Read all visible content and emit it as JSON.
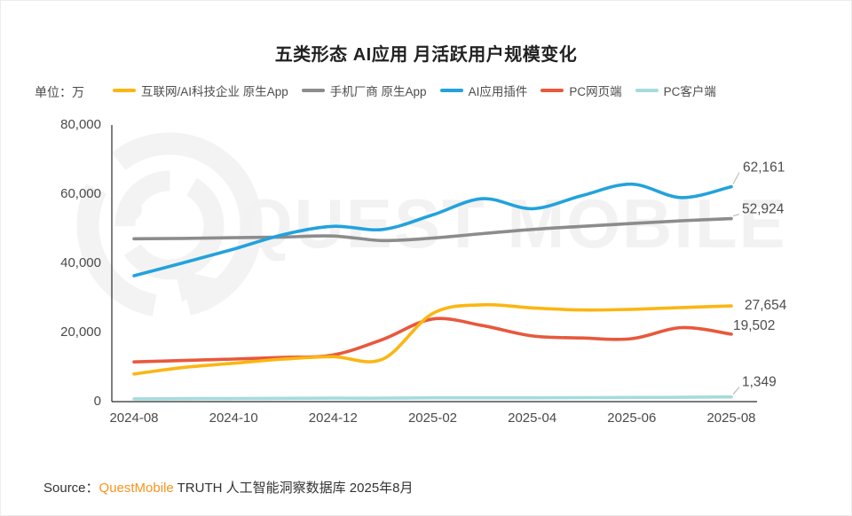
{
  "title": "五类形态 AI应用 月活跃用户规模变化",
  "unit_label": "单位：万",
  "watermark_text": "QUEST MOBILE",
  "source": {
    "prefix": "Source：",
    "brand": "QuestMobile",
    "suffix": " TRUTH 人工智能洞察数据库 2025年8月",
    "brand_color": "#F7941E"
  },
  "chart_data": {
    "type": "line",
    "title": "五类形态 AI应用 月活跃用户规模变化",
    "unit": "万",
    "grid": false,
    "legend_position": "top",
    "x": [
      "2024-08",
      "2024-09",
      "2024-10",
      "2024-11",
      "2024-12",
      "2025-01",
      "2025-02",
      "2025-03",
      "2025-04",
      "2025-05",
      "2025-06",
      "2025-07",
      "2025-08"
    ],
    "x_tick_labels": [
      "2024-08",
      "2024-10",
      "2024-12",
      "2025-02",
      "2025-04",
      "2025-06",
      "2025-08"
    ],
    "ylim": [
      0,
      80000
    ],
    "yticks": [
      {
        "value": 0,
        "label": "0"
      },
      {
        "value": 20000,
        "label": "20,000"
      },
      {
        "value": 40000,
        "label": "40,000"
      },
      {
        "value": 60000,
        "label": "60,000"
      },
      {
        "value": 80000,
        "label": "80,000"
      }
    ],
    "series": [
      {
        "name": "互联网/AI科技企业 原生App",
        "color": "#FBB612",
        "end_label": "27,654",
        "values": [
          8000,
          9900,
          11100,
          12300,
          13000,
          12300,
          25500,
          28000,
          27100,
          26500,
          26700,
          27200,
          27654
        ]
      },
      {
        "name": "手机厂商 原生App",
        "color": "#8C8C8C",
        "end_label": "52,924",
        "values": [
          47100,
          47200,
          47400,
          47600,
          47900,
          46600,
          47300,
          48600,
          49800,
          50700,
          51500,
          52300,
          52924
        ]
      },
      {
        "name": "AI应用插件",
        "color": "#23A2DC",
        "end_label": "62,161",
        "values": [
          36400,
          40200,
          44100,
          48300,
          50700,
          49800,
          54000,
          58700,
          55800,
          59600,
          62900,
          59000,
          62161
        ]
      },
      {
        "name": "PC网页端",
        "color": "#E8583C",
        "end_label": "19,502",
        "values": [
          11500,
          11900,
          12300,
          12800,
          13500,
          18000,
          23900,
          22000,
          19000,
          18400,
          18200,
          21400,
          19502
        ]
      },
      {
        "name": "PC客户端",
        "color": "#A5DBDC",
        "end_label": "1,349",
        "values": [
          800,
          850,
          900,
          950,
          1000,
          1000,
          1100,
          1100,
          1100,
          1150,
          1200,
          1250,
          1349
        ]
      }
    ]
  }
}
